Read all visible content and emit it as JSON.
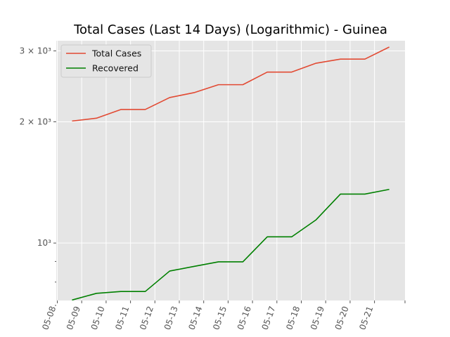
{
  "chart_data": {
    "type": "line",
    "title": "Total Cases (Last 14 Days) (Logarithmic) - Guinea",
    "xlabel": "",
    "ylabel": "",
    "yscale": "log",
    "ylim": [
      720,
      3180
    ],
    "x": [
      "05-08",
      "05-09",
      "05-10",
      "05-11",
      "05-12",
      "05-13",
      "05-14",
      "05-15",
      "05-16",
      "05-17",
      "05-18",
      "05-19",
      "05-20",
      "05-21"
    ],
    "x_tick_labels": [
      "05-08",
      "05-09",
      "05-10",
      "05-11",
      "05-12",
      "05-13",
      "05-14",
      "05-15",
      "05-16",
      "05-17",
      "05-18",
      "05-19",
      "05-20",
      "05-21"
    ],
    "y_tick_labels": [
      "3 × 10³",
      "2 × 10³",
      "10³"
    ],
    "y_major_ticks": [
      3000,
      2000,
      1000
    ],
    "y_minor_ticks": [
      900,
      800,
      700
    ],
    "grid": true,
    "legend_position": "top-left",
    "series": [
      {
        "name": "Total Cases",
        "color": "#e24a33",
        "values": [
          2009,
          2042,
          2146,
          2146,
          2298,
          2363,
          2473,
          2473,
          2658,
          2658,
          2796,
          2863,
          2863,
          3067
        ]
      },
      {
        "name": "Recovered",
        "color": "#008000",
        "values": [
          722,
          750,
          758,
          758,
          852,
          875,
          898,
          898,
          1036,
          1036,
          1142,
          1323,
          1323,
          1359
        ]
      }
    ]
  }
}
